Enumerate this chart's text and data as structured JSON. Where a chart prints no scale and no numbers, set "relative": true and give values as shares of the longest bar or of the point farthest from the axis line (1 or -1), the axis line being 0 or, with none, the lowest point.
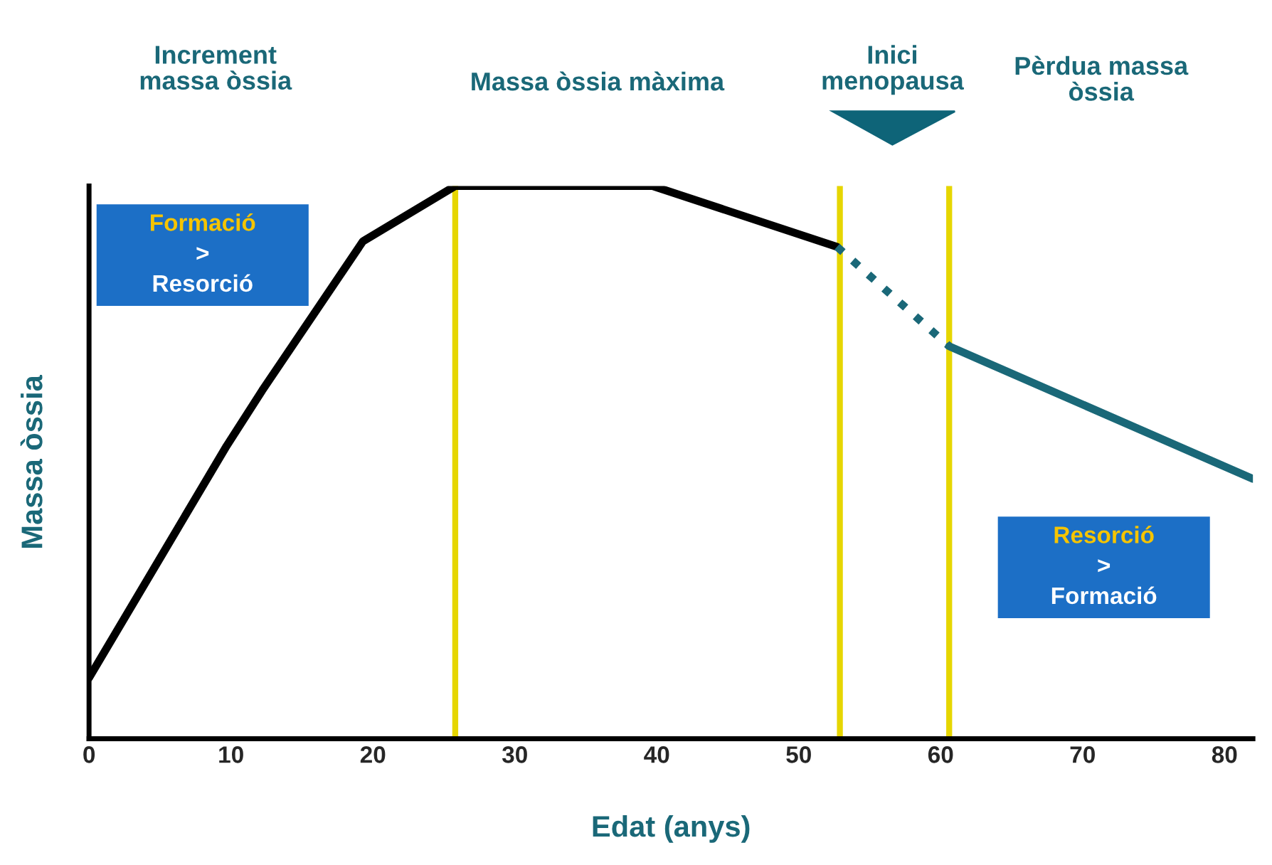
{
  "chart_data": {
    "type": "line",
    "relative": true,
    "xlabel": "Edat (anys)",
    "ylabel": "Massa òssia",
    "xlim": [
      0,
      82
    ],
    "xticks": [
      0,
      10,
      20,
      30,
      40,
      50,
      60,
      70,
      80
    ],
    "tick_labels": "x",
    "grid": false,
    "legend": false,
    "series": [
      {
        "color": "#000000",
        "line_style": "solid",
        "x": [
          0,
          9.7,
          12.2,
          19.3,
          25.8,
          39.7,
          52.7
        ],
        "values": [
          0.11,
          0.53,
          0.63,
          0.9,
          1,
          1,
          0.89
        ]
      },
      {
        "color": "#1a6878",
        "line_style": "dotted",
        "x": [
          52.7,
          60.6
        ],
        "values": [
          0.89,
          0.71
        ]
      },
      {
        "color": "#1a6878",
        "line_style": "solid",
        "x": [
          60.6,
          82
        ],
        "values": [
          0.71,
          0.47
        ]
      }
    ],
    "ref_lines": [
      {
        "axis": "x",
        "value": 25.8,
        "color": "#e6d600"
      },
      {
        "axis": "x",
        "value": 52.9,
        "color": "#e6d600"
      },
      {
        "axis": "x",
        "value": 60.6,
        "color": "#e6d600"
      }
    ],
    "annotations": [
      "Increment\nmassa òssia",
      "Massa òssia màxima",
      "Inici\nmenopausa",
      "Pèrdua massa\nòssia",
      "Formació\n>\nResorció",
      "Resorció\n>\nFormació"
    ]
  }
}
